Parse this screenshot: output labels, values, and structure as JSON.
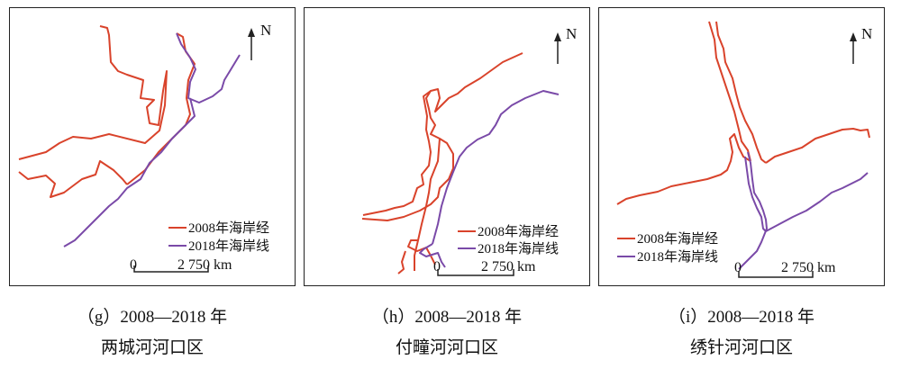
{
  "colors": {
    "line_2008": "#d9432b",
    "line_2018": "#7a4aa8",
    "frame": "#222222"
  },
  "north_label": "N",
  "panels": [
    {
      "id": "g",
      "legend": {
        "label_2008": "2008年海岸经",
        "label_2018": "2018年海岸线"
      },
      "scale": {
        "zero": "0",
        "value": "2 750 km"
      },
      "caption_line1": "（g）2008—2018 年",
      "caption_line2": "两城河河口区"
    },
    {
      "id": "h",
      "legend": {
        "label_2008": "2008年海岸经",
        "label_2018": "2018年海岸线"
      },
      "scale": {
        "zero": "0",
        "value": "2 750 km"
      },
      "caption_line1": "（h）2008—2018 年",
      "caption_line2": "付疃河河口区"
    },
    {
      "id": "i",
      "legend": {
        "label_2008": "2008年海岸经",
        "label_2018": "2018年海岸线"
      },
      "scale": {
        "zero": "0",
        "value": "2 750 km"
      },
      "caption_line1": "（i）2008—2018 年",
      "caption_line2": "绣针河河口区"
    }
  ]
}
